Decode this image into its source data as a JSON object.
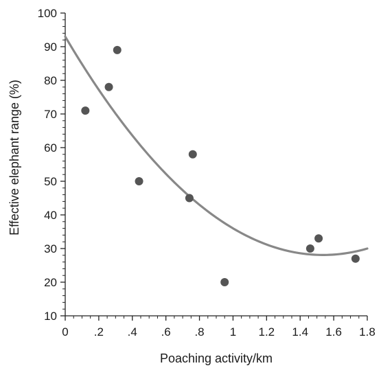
{
  "chart_data": {
    "type": "scatter",
    "xlabel": "Poaching activity/km",
    "ylabel": "Effective elephant range (%)",
    "xlim": [
      0,
      1.8
    ],
    "ylim": [
      10,
      100
    ],
    "x_ticks": [
      {
        "value": 0,
        "label": "0"
      },
      {
        "value": 0.2,
        "label": ".2"
      },
      {
        "value": 0.4,
        "label": ".4"
      },
      {
        "value": 0.6,
        "label": ".6"
      },
      {
        "value": 0.8,
        "label": ".8"
      },
      {
        "value": 1.0,
        "label": "1"
      },
      {
        "value": 1.2,
        "label": "1.2"
      },
      {
        "value": 1.4,
        "label": "1.4"
      },
      {
        "value": 1.6,
        "label": "1.6"
      },
      {
        "value": 1.8,
        "label": "1.8"
      }
    ],
    "y_ticks": [
      {
        "value": 10,
        "label": "10"
      },
      {
        "value": 20,
        "label": "20"
      },
      {
        "value": 30,
        "label": "30"
      },
      {
        "value": 40,
        "label": "40"
      },
      {
        "value": 50,
        "label": "50"
      },
      {
        "value": 60,
        "label": "60"
      },
      {
        "value": 70,
        "label": "70"
      },
      {
        "value": 80,
        "label": "80"
      },
      {
        "value": 90,
        "label": "90"
      },
      {
        "value": 100,
        "label": "100"
      }
    ],
    "points": [
      {
        "x": 0.12,
        "y": 71
      },
      {
        "x": 0.26,
        "y": 78
      },
      {
        "x": 0.31,
        "y": 89
      },
      {
        "x": 0.44,
        "y": 50
      },
      {
        "x": 0.74,
        "y": 45
      },
      {
        "x": 0.76,
        "y": 58
      },
      {
        "x": 0.95,
        "y": 20
      },
      {
        "x": 1.46,
        "y": 30
      },
      {
        "x": 1.51,
        "y": 33
      },
      {
        "x": 1.73,
        "y": 27
      }
    ],
    "fit": {
      "type": "quadratic",
      "coefficients": [
        93.0,
        -84.5,
        27.5
      ],
      "x_range": [
        0,
        1.8
      ]
    },
    "grid": false,
    "legend": "none",
    "colors": {
      "points": "#555555",
      "fit_line": "#888888",
      "axis": "#222222"
    }
  }
}
